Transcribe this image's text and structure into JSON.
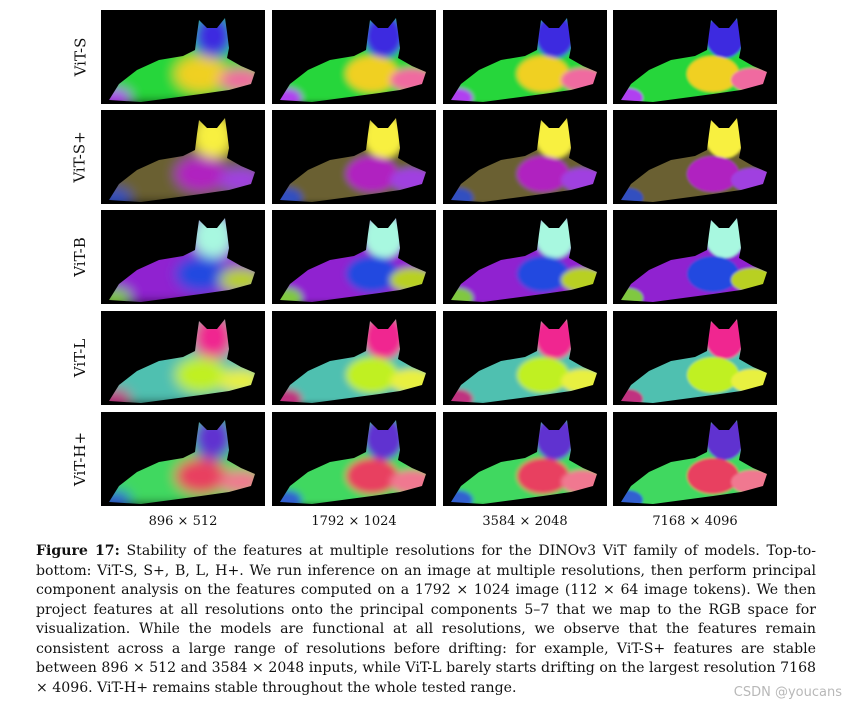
{
  "figure": {
    "row_labels": [
      "ViT-S",
      "ViT-S+",
      "ViT-B",
      "ViT-L",
      "ViT-H+"
    ],
    "column_labels": [
      "896 × 512",
      "1792 × 1024",
      "3584 × 2048",
      "7168 × 4096"
    ],
    "image_content": "PCA feature visualization of a lying cat at four resolutions per model",
    "palettes": {
      "ViT-S": {
        "head": "#3d2be0",
        "body": "#26d63a",
        "rear": "#f0d020",
        "tail": "#f06aa0",
        "paw": "#b040f0"
      },
      "ViT-S+": {
        "head": "#f8f040",
        "body": "#6a6030",
        "rear": "#b020c0",
        "tail": "#a040e0",
        "paw": "#3050c0"
      },
      "ViT-B": {
        "head": "#a8f8e0",
        "body": "#9020d0",
        "rear": "#2048e0",
        "tail": "#b8d020",
        "paw": "#80c840"
      },
      "ViT-L": {
        "head": "#f02890",
        "body": "#50c0b0",
        "rear": "#c0f020",
        "tail": "#e8f040",
        "paw": "#c03080"
      },
      "ViT-H+": {
        "head": "#6030d0",
        "body": "#40d860",
        "rear": "#e84060",
        "tail": "#f07890",
        "paw": "#3060d0"
      }
    }
  },
  "caption": {
    "label": "Figure 17:",
    "text": "Stability of the features at multiple resolutions for the DINOv3 ViT family of models. Top-to-bottom: ViT-S, S+, B, L, H+. We run inference on an image at multiple resolutions, then perform principal component analysis on the features computed on a 1792 × 1024 image (112 × 64 image tokens). We then project features at all resolutions onto the principal components 5–7 that we map to the RGB space for visualization. While the models are functional at all resolutions, we observe that the features remain consistent across a large range of resolutions before drifting: for example, ViT-S+ features are stable between 896 × 512 and 3584 × 2048 inputs, while ViT-L barely starts drifting on the largest resolution 7168 × 4096. ViT-H+ remains stable throughout the whole tested range."
  },
  "watermark": "CSDN @youcans"
}
